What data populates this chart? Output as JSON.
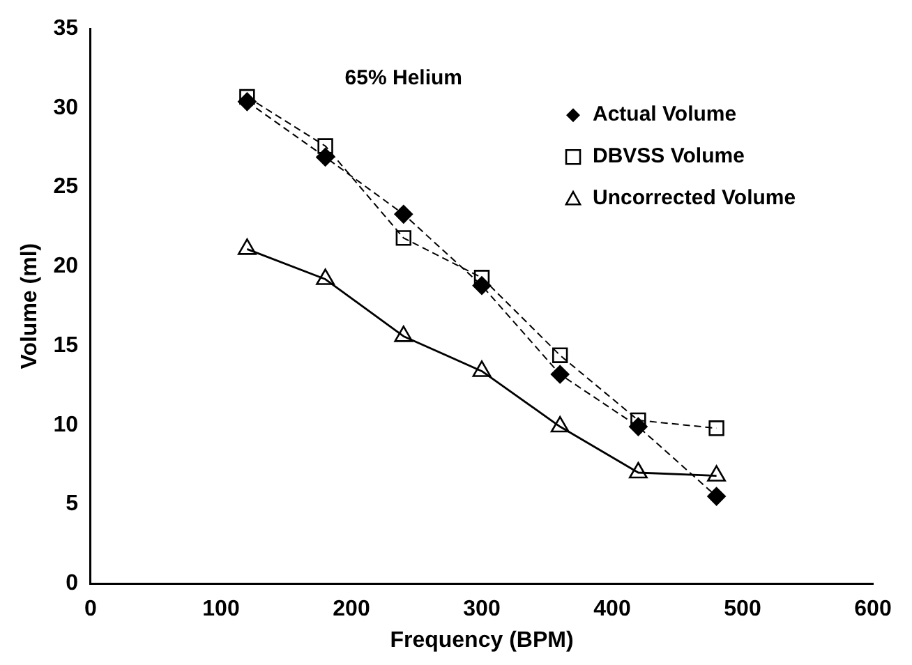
{
  "chart_data": {
    "type": "line",
    "title": "65% Helium",
    "xlabel": "Frequency (BPM)",
    "ylabel": "Volume (ml)",
    "x": [
      120,
      180,
      240,
      300,
      360,
      420,
      480
    ],
    "series": [
      {
        "name": "Actual Volume",
        "color": "#000000",
        "marker": "diamond",
        "line_style": "dashed",
        "values": [
          30.4,
          26.9,
          23.3,
          18.8,
          13.2,
          9.9,
          5.5
        ]
      },
      {
        "name": "DBVSS Volume",
        "color": "#000000",
        "marker": "square",
        "line_style": "dashed",
        "values": [
          30.7,
          27.6,
          21.8,
          19.3,
          14.4,
          10.3,
          9.8
        ]
      },
      {
        "name": "Uncorrected Volume",
        "color": "#000000",
        "marker": "triangle",
        "line_style": "solid",
        "values": [
          21.1,
          19.2,
          15.6,
          13.4,
          9.9,
          7.0,
          6.8
        ]
      }
    ],
    "xlim": [
      0,
      600
    ],
    "xticks": [
      0,
      100,
      200,
      300,
      400,
      500,
      600
    ],
    "ylim": [
      0,
      35
    ],
    "yticks": [
      0,
      5,
      10,
      15,
      20,
      25,
      30,
      35
    ],
    "grid": false,
    "legend": "top right"
  }
}
